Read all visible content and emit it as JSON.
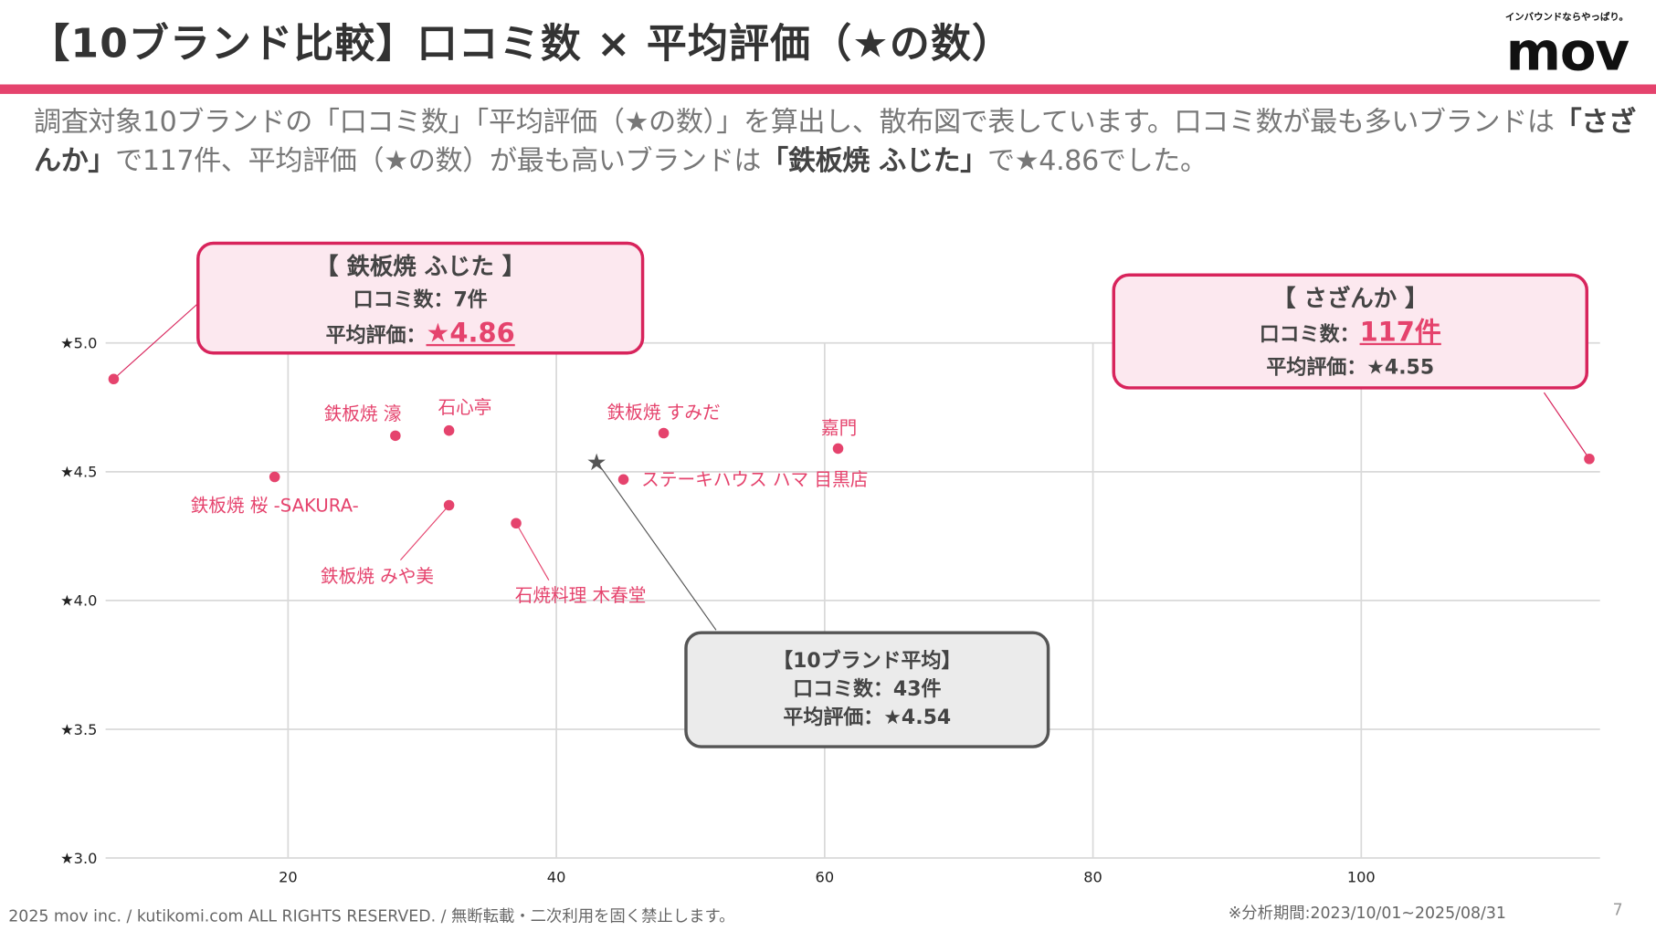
{
  "header": {
    "title": "【10ブランド比較】口コミ数 × 平均評価（★の数）",
    "logo_tagline": "インバウンドならやっぱり。",
    "logo": "mov",
    "accent_color": "#e5436d"
  },
  "description": {
    "part1": "調査対象10ブランドの「口コミ数」「平均評価（★の数）」を算出し、散布図で表しています。口コミ数が最も多いブランドは",
    "bold1": "「さざんか」",
    "part2": "で117件、平均評価（★の数）が最も高いブランドは",
    "bold2": "「鉄板焼 ふじた」",
    "part3": "で★4.86でした。"
  },
  "callouts": {
    "fujita": {
      "title": "【 鉄板焼 ふじた 】",
      "count": "口コミ数：7件",
      "rating_label": "平均評価：",
      "rating_value": "★4.86"
    },
    "sazanka": {
      "title": "【 さざんか 】",
      "count_label": "口コミ数：",
      "count_value": "117件",
      "rating": "平均評価：★4.55"
    },
    "average": {
      "title": "【10ブランド平均】",
      "count": "口コミ数：43件",
      "rating": "平均評価：★4.54"
    }
  },
  "chart_data": {
    "type": "scatter",
    "xlim": [
      6.4,
      117.8
    ],
    "ylim": [
      3.0,
      5.0
    ],
    "x_ticks": [
      "20",
      "40",
      "60",
      "80",
      "100"
    ],
    "y_ticks": [
      "★3.0",
      "★3.5",
      "★4.0",
      "★4.5",
      "★5.0"
    ],
    "grid": true,
    "point_color": "#e5436d",
    "points": [
      {
        "label": "鉄板焼 ふじた",
        "x": 7,
        "y": 4.86
      },
      {
        "label": "鉄板焼 桜 -SAKURA-",
        "x": 19,
        "y": 4.48
      },
      {
        "label": "鉄板焼 濠",
        "x": 28,
        "y": 4.64
      },
      {
        "label": "石心亭",
        "x": 32,
        "y": 4.66
      },
      {
        "label": "鉄板焼 みや美",
        "x": 32,
        "y": 4.37
      },
      {
        "label": "石焼料理 木春堂",
        "x": 37,
        "y": 4.3
      },
      {
        "label": "ステーキハウス ハマ 目黒店",
        "x": 45,
        "y": 4.47
      },
      {
        "label": "鉄板焼 すみだ",
        "x": 48,
        "y": 4.65
      },
      {
        "label": "嘉門",
        "x": 61,
        "y": 4.59
      },
      {
        "label": "さざんか",
        "x": 117,
        "y": 4.55
      }
    ],
    "average": {
      "x": 43,
      "y": 4.54
    }
  },
  "footer": {
    "copyright": "2025 mov inc. / kutikomi.com ALL RIGHTS RESERVED. / 無断転載・二次利用を固く禁止します。",
    "period": "※分析期間:2023/10/01~2025/08/31",
    "page": "7"
  }
}
